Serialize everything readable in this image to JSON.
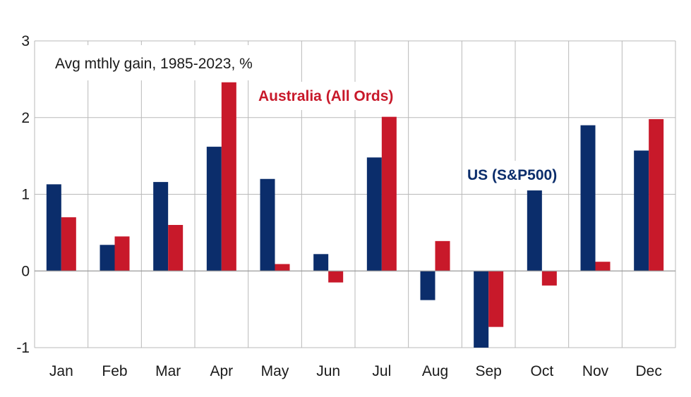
{
  "chart_data": {
    "type": "bar",
    "title": "Avg mthly gain, 1985-2023, %",
    "xlabel": "",
    "ylabel": "",
    "ylim": [
      -1,
      3
    ],
    "yticks": [
      "-1",
      "0",
      "1",
      "2",
      "3"
    ],
    "grid": true,
    "categories": [
      "Jan",
      "Feb",
      "Mar",
      "Apr",
      "May",
      "Jun",
      "Jul",
      "Aug",
      "Sep",
      "Oct",
      "Nov",
      "Dec"
    ],
    "series": [
      {
        "name": "US (S&P500)",
        "color": "#0b2d6b",
        "values": [
          1.13,
          0.34,
          1.16,
          1.62,
          1.2,
          0.22,
          1.48,
          -0.38,
          -1.0,
          1.05,
          1.9,
          1.57
        ]
      },
      {
        "name": "Australia (All Ords)",
        "color": "#c8192a",
        "values": [
          0.7,
          0.45,
          0.6,
          2.46,
          0.09,
          -0.15,
          2.01,
          0.39,
          -0.73,
          -0.19,
          0.12,
          1.98
        ]
      }
    ]
  }
}
